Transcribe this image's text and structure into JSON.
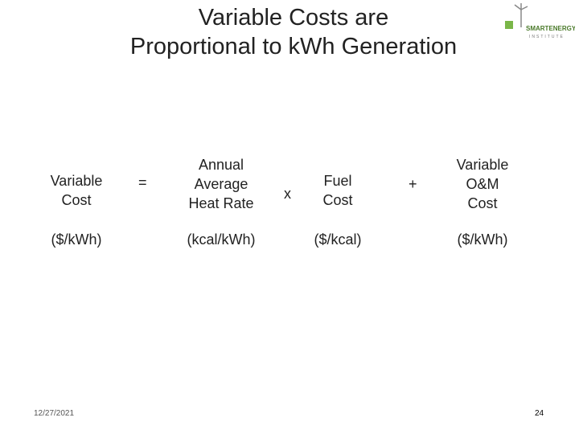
{
  "title": [
    "Variable Costs are",
    "Proportional to kWh Generation"
  ],
  "logo": [
    "SMARTENERGY",
    "INSTITUTE"
  ],
  "terms": [
    {
      "lines": [
        "Variable",
        "Cost"
      ],
      "unit": "($/kWh)"
    },
    {
      "lines": [
        "Annual",
        "Average",
        "Heat Rate"
      ],
      "unit": "(kcal/kWh)"
    },
    {
      "lines": [
        "Fuel",
        "Cost"
      ],
      "unit": "($/kcal)"
    },
    {
      "lines": [
        "Variable",
        "O&M",
        "Cost"
      ],
      "unit": "($/kWh)"
    }
  ],
  "operators": [
    "=",
    "x",
    "+"
  ],
  "footer": {
    "date": "12/27/2021",
    "page": "24"
  }
}
